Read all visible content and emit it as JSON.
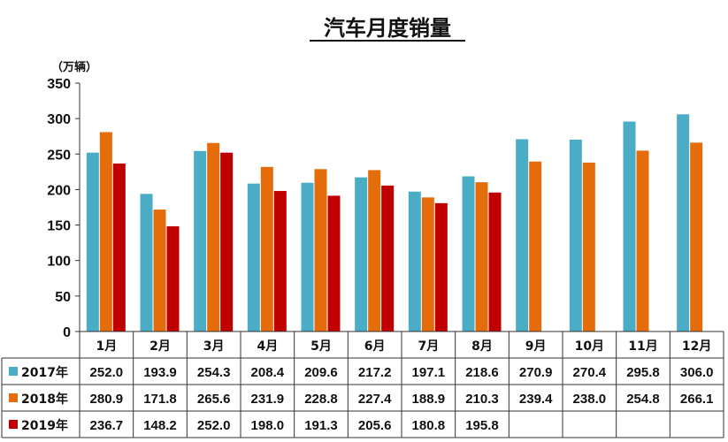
{
  "chart_data": {
    "type": "bar",
    "title": "汽车月度销量",
    "ylabel": "（万辆）",
    "ylim": [
      0,
      350
    ],
    "yticks": [
      0,
      50,
      100,
      150,
      200,
      250,
      300,
      350
    ],
    "grid": false,
    "legend_placement": "data-table-left",
    "categories": [
      "1月",
      "2月",
      "3月",
      "4月",
      "5月",
      "6月",
      "7月",
      "8月",
      "9月",
      "10月",
      "11月",
      "12月"
    ],
    "series": [
      {
        "name": "2017年",
        "color": "#4BACC6",
        "values": [
          252.0,
          193.9,
          254.3,
          208.4,
          209.6,
          217.2,
          197.1,
          218.6,
          270.9,
          270.4,
          295.8,
          306.0
        ],
        "labels": [
          "252.0",
          "193.9",
          "254.3",
          "208.4",
          "209.6",
          "217.2",
          "197.1",
          "218.6",
          "270.9",
          "270.4",
          "295.8",
          "306.0"
        ]
      },
      {
        "name": "2018年",
        "color": "#E46C0A",
        "values": [
          280.9,
          171.8,
          265.6,
          231.9,
          228.8,
          227.4,
          188.9,
          210.3,
          239.4,
          238.0,
          254.8,
          266.1
        ],
        "labels": [
          "280.9",
          "171.8",
          "265.6",
          "231.9",
          "228.8",
          "227.4",
          "188.9",
          "210.3",
          "239.4",
          "238.0",
          "254.8",
          "266.1"
        ]
      },
      {
        "name": "2019年",
        "color": "#C00000",
        "values": [
          236.7,
          148.2,
          252.0,
          198.0,
          191.3,
          205.6,
          180.8,
          195.8,
          null,
          null,
          null,
          null
        ],
        "labels": [
          "236.7",
          "148.2",
          "252.0",
          "198.0",
          "191.3",
          "205.6",
          "180.8",
          "195.8",
          "",
          "",
          "",
          ""
        ]
      }
    ]
  }
}
